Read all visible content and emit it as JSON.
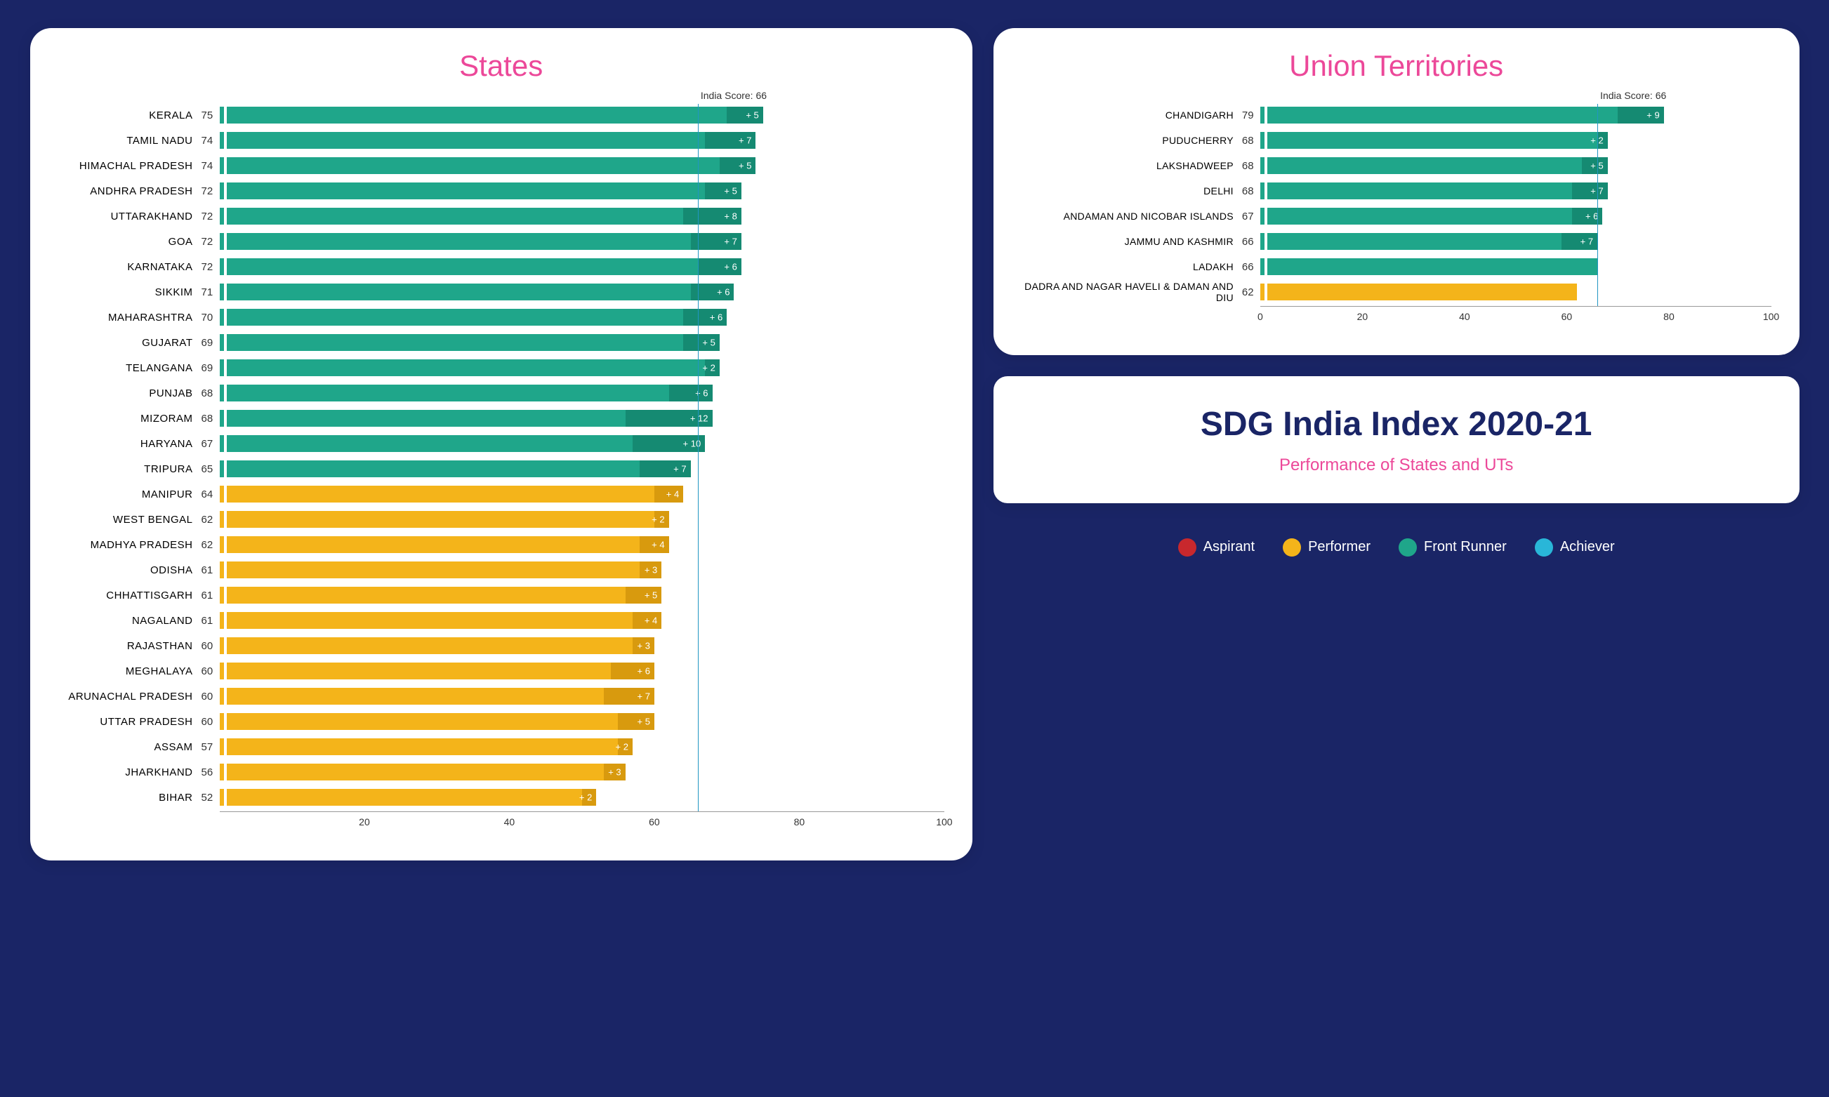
{
  "colors": {
    "bg": "#1a2566",
    "panel": "#ffffff",
    "title_pink": "#ec4899",
    "front_runner": "#1fa68a",
    "front_runner_dark": "#158a72",
    "performer": "#f4b41a",
    "performer_dark": "#d89a0e",
    "aspirant": "#c8282d",
    "achiever": "#29b6d8",
    "india_line": "#2196c3",
    "text_dark": "#333333",
    "main_title": "#1a2566"
  },
  "india_score": 66,
  "india_label": "India Score: 66",
  "states_title": "States",
  "ut_title": "Union Territories",
  "main_title": "SDG India Index 2020-21",
  "sub_title": "Performance of States and UTs",
  "x_max": 100,
  "x_ticks": [
    0,
    20,
    40,
    60,
    80,
    100
  ],
  "legend": [
    {
      "label": "Aspirant",
      "color": "#c8282d"
    },
    {
      "label": "Performer",
      "color": "#f4b41a"
    },
    {
      "label": "Front Runner",
      "color": "#1fa68a"
    },
    {
      "label": "Achiever",
      "color": "#29b6d8"
    }
  ],
  "states": [
    {
      "name": "KERALA",
      "score": 75,
      "change": 5,
      "cat": "fr"
    },
    {
      "name": "TAMIL NADU",
      "score": 74,
      "change": 7,
      "cat": "fr"
    },
    {
      "name": "HIMACHAL PRADESH",
      "score": 74,
      "change": 5,
      "cat": "fr"
    },
    {
      "name": "ANDHRA PRADESH",
      "score": 72,
      "change": 5,
      "cat": "fr"
    },
    {
      "name": "UTTARAKHAND",
      "score": 72,
      "change": 8,
      "cat": "fr"
    },
    {
      "name": "GOA",
      "score": 72,
      "change": 7,
      "cat": "fr"
    },
    {
      "name": "KARNATAKA",
      "score": 72,
      "change": 6,
      "cat": "fr"
    },
    {
      "name": "SIKKIM",
      "score": 71,
      "change": 6,
      "cat": "fr"
    },
    {
      "name": "MAHARASHTRA",
      "score": 70,
      "change": 6,
      "cat": "fr"
    },
    {
      "name": "GUJARAT",
      "score": 69,
      "change": 5,
      "cat": "fr"
    },
    {
      "name": "TELANGANA",
      "score": 69,
      "change": 2,
      "cat": "fr"
    },
    {
      "name": "PUNJAB",
      "score": 68,
      "change": 6,
      "cat": "fr"
    },
    {
      "name": "MIZORAM",
      "score": 68,
      "change": 12,
      "cat": "fr"
    },
    {
      "name": "HARYANA",
      "score": 67,
      "change": 10,
      "cat": "fr"
    },
    {
      "name": "TRIPURA",
      "score": 65,
      "change": 7,
      "cat": "fr"
    },
    {
      "name": "MANIPUR",
      "score": 64,
      "change": 4,
      "cat": "pf"
    },
    {
      "name": "WEST BENGAL",
      "score": 62,
      "change": 2,
      "cat": "pf"
    },
    {
      "name": "MADHYA PRADESH",
      "score": 62,
      "change": 4,
      "cat": "pf"
    },
    {
      "name": "ODISHA",
      "score": 61,
      "change": 3,
      "cat": "pf"
    },
    {
      "name": "CHHATTISGARH",
      "score": 61,
      "change": 5,
      "cat": "pf"
    },
    {
      "name": "NAGALAND",
      "score": 61,
      "change": 4,
      "cat": "pf"
    },
    {
      "name": "RAJASTHAN",
      "score": 60,
      "change": 3,
      "cat": "pf"
    },
    {
      "name": "MEGHALAYA",
      "score": 60,
      "change": 6,
      "cat": "pf"
    },
    {
      "name": "ARUNACHAL PRADESH",
      "score": 60,
      "change": 7,
      "cat": "pf"
    },
    {
      "name": "UTTAR PRADESH",
      "score": 60,
      "change": 5,
      "cat": "pf"
    },
    {
      "name": "ASSAM",
      "score": 57,
      "change": 2,
      "cat": "pf"
    },
    {
      "name": "JHARKHAND",
      "score": 56,
      "change": 3,
      "cat": "pf"
    },
    {
      "name": "BIHAR",
      "score": 52,
      "change": 2,
      "cat": "pf"
    }
  ],
  "uts": [
    {
      "name": "CHANDIGARH",
      "score": 79,
      "change": 9,
      "cat": "fr"
    },
    {
      "name": "PUDUCHERRY",
      "score": 68,
      "change": 2,
      "cat": "fr"
    },
    {
      "name": "LAKSHADWEEP",
      "score": 68,
      "change": 5,
      "cat": "fr"
    },
    {
      "name": "DELHI",
      "score": 68,
      "change": 7,
      "cat": "fr"
    },
    {
      "name": "ANDAMAN AND NICOBAR ISLANDS",
      "score": 67,
      "change": 6,
      "cat": "fr"
    },
    {
      "name": "JAMMU AND KASHMIR",
      "score": 66,
      "change": 7,
      "cat": "fr"
    },
    {
      "name": "LADAKH",
      "score": 66,
      "change": null,
      "cat": "fr"
    },
    {
      "name": "DADRA AND NAGAR HAVELI & DAMAN AND DIU",
      "score": 62,
      "change": null,
      "cat": "pf"
    }
  ]
}
